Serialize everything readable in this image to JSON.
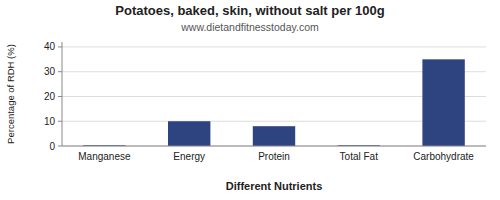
{
  "chart_data": {
    "type": "bar",
    "title": "Potatoes, baked, skin, without salt per 100g",
    "subtitle": "www.dietandfitnesstoday.com",
    "xlabel": "Different Nutrients",
    "ylabel": "Percentage of RDH (%)",
    "categories": [
      "Manganese",
      "Energy",
      "Protein",
      "Total Fat",
      "Carbohydrate"
    ],
    "values": [
      0.3,
      10.0,
      8.0,
      0.3,
      35.0
    ],
    "color": "#2e4480",
    "ylim": [
      0,
      42
    ],
    "yticks": [
      0,
      10,
      20,
      30,
      40
    ],
    "grid": true
  }
}
